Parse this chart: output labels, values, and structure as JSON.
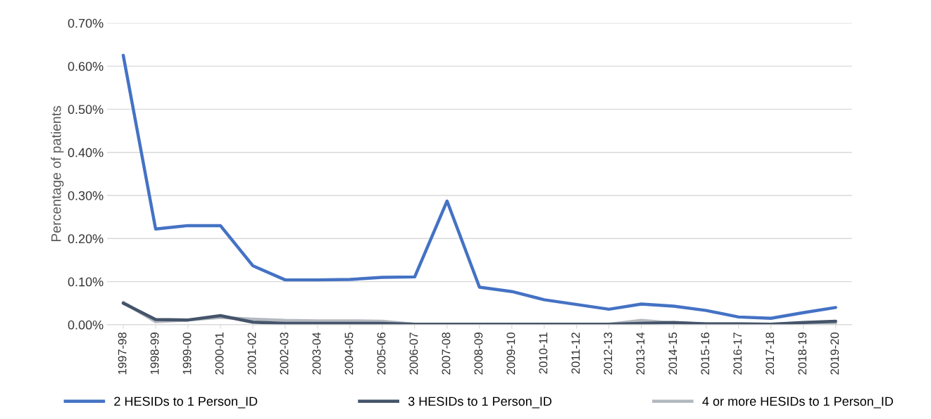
{
  "chart_data": {
    "type": "line",
    "ylabel": "Percentage of patients",
    "categories": [
      "1997-98",
      "1998-99",
      "1999-00",
      "2000-01",
      "2001-02",
      "2002-03",
      "2003-04",
      "2004-05",
      "2005-06",
      "2006-07",
      "2007-08",
      "2008-09",
      "2009-10",
      "2010-11",
      "2011-12",
      "2012-13",
      "2013-14",
      "2014-15",
      "2015-16",
      "2016-17",
      "2017-18",
      "2018-19",
      "2019-20"
    ],
    "series": [
      {
        "name": "2 HESIDs to 1 Person_ID",
        "color": "#4472c4",
        "values": [
          0.625,
          0.222,
          0.23,
          0.23,
          0.137,
          0.104,
          0.104,
          0.105,
          0.11,
          0.111,
          0.287,
          0.087,
          0.077,
          0.058,
          0.047,
          0.036,
          0.048,
          0.043,
          0.033,
          0.018,
          0.015,
          0.028,
          0.04
        ]
      },
      {
        "name": "3 HESIDs to 1 Person_ID",
        "color": "#44546a",
        "values": [
          0.05,
          0.012,
          0.011,
          0.021,
          0.006,
          0.003,
          0.003,
          0.003,
          0.003,
          0.001,
          0.001,
          0.001,
          0.001,
          0.001,
          0.001,
          0.001,
          0.003,
          0.005,
          0.002,
          0.002,
          0.001,
          0.005,
          0.008
        ]
      },
      {
        "name": "4 or more HESIDs to 1 Person_ID",
        "color": "#b4b9bf",
        "values": [
          0.052,
          0.007,
          0.011,
          0.017,
          0.013,
          0.01,
          0.009,
          0.009,
          0.008,
          0.001,
          0.001,
          0.001,
          0.001,
          0.001,
          0.001,
          0.001,
          0.01,
          0.004,
          0.002,
          0.002,
          0.001,
          0.003,
          0.004
        ]
      }
    ],
    "ylim": [
      0,
      0.7
    ],
    "yticks": [
      {
        "value": 0,
        "label": "0.00%"
      },
      {
        "value": 0.1,
        "label": "0.10%"
      },
      {
        "value": 0.2,
        "label": "0.20%"
      },
      {
        "value": 0.3,
        "label": "0.30%"
      },
      {
        "value": 0.4,
        "label": "0.40%"
      },
      {
        "value": 0.5,
        "label": "0.50%"
      },
      {
        "value": 0.6,
        "label": "0.60%"
      },
      {
        "value": 0.7,
        "label": "0.70%"
      }
    ],
    "grid": "y",
    "legend": "bottom",
    "marker": "none",
    "line_style": "solid"
  }
}
